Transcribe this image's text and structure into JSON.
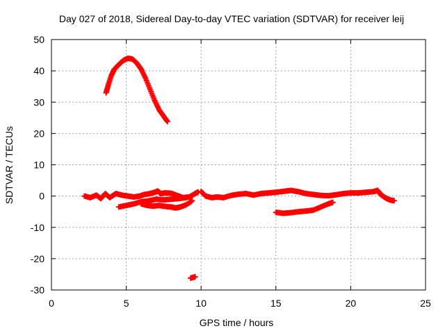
{
  "chart_data": {
    "type": "scatter",
    "title": "Day 027 of 2018, Sidereal Day-to-day VTEC variation (SDTVAR) for receiver leij",
    "xlabel": "GPS time / hours",
    "ylabel": "SDTVAR / TECUs",
    "xlim": [
      0,
      25
    ],
    "ylim": [
      -30,
      50
    ],
    "xticks": [
      0,
      5,
      10,
      15,
      20,
      25
    ],
    "yticks": [
      -30,
      -20,
      -10,
      0,
      10,
      20,
      30,
      40,
      50
    ],
    "grid": true,
    "marker_color": "#ff0000",
    "series": [
      {
        "values": [
          [
            3.65,
            33.0
          ],
          [
            3.8,
            35.5
          ],
          [
            4.0,
            38.5
          ],
          [
            4.2,
            40.5
          ],
          [
            4.5,
            42.0
          ],
          [
            4.8,
            43.3
          ],
          [
            5.1,
            44.0
          ],
          [
            5.4,
            43.8
          ],
          [
            5.7,
            42.5
          ],
          [
            6.0,
            40.5
          ],
          [
            6.3,
            37.5
          ],
          [
            6.6,
            34.0
          ],
          [
            6.9,
            30.5
          ],
          [
            7.2,
            27.5
          ],
          [
            7.5,
            25.5
          ],
          [
            7.75,
            23.8
          ]
        ]
      },
      {
        "values": [
          [
            2.2,
            0.0
          ],
          [
            2.6,
            -0.5
          ],
          [
            3.0,
            0.3
          ],
          [
            3.3,
            -0.8
          ],
          [
            3.6,
            0.8
          ],
          [
            3.9,
            -0.5
          ],
          [
            4.3,
            0.8
          ],
          [
            4.7,
            0.3
          ],
          [
            5.1,
            0.0
          ],
          [
            5.5,
            -0.3
          ],
          [
            5.9,
            0.0
          ],
          [
            6.2,
            0.5
          ],
          [
            6.6,
            0.8
          ],
          [
            6.9,
            1.2
          ],
          [
            7.1,
            1.6
          ],
          [
            7.3,
            0.8
          ],
          [
            7.6,
            1.0
          ],
          [
            8.0,
            0.9
          ],
          [
            8.4,
            0.2
          ],
          [
            8.8,
            -0.5
          ],
          [
            9.2,
            -0.3
          ],
          [
            9.6,
            0.8
          ],
          [
            9.8,
            1.3
          ]
        ]
      },
      {
        "values": [
          [
            4.5,
            -3.5
          ],
          [
            5.0,
            -3.0
          ],
          [
            5.5,
            -2.5
          ],
          [
            6.0,
            -1.8
          ],
          [
            6.5,
            -1.5
          ],
          [
            7.0,
            -1.0
          ],
          [
            7.5,
            -1.2
          ],
          [
            8.0,
            -1.0
          ],
          [
            8.5,
            -0.8
          ],
          [
            9.0,
            -0.5
          ]
        ]
      },
      {
        "values": [
          [
            6.0,
            -2.5
          ],
          [
            6.4,
            -3.0
          ],
          [
            6.8,
            -3.2
          ],
          [
            7.2,
            -3.0
          ],
          [
            7.6,
            -3.3
          ],
          [
            8.0,
            -3.5
          ],
          [
            8.3,
            -3.8
          ],
          [
            8.6,
            -3.5
          ],
          [
            9.0,
            -2.8
          ],
          [
            9.4,
            -1.5
          ]
        ]
      },
      {
        "values": [
          [
            9.3,
            -26.2
          ],
          [
            9.6,
            -25.8
          ]
        ]
      },
      {
        "values": [
          [
            10.0,
            1.5
          ],
          [
            10.3,
            0.0
          ],
          [
            10.7,
            -0.5
          ],
          [
            11.1,
            -0.3
          ],
          [
            11.5,
            -0.5
          ],
          [
            12.0,
            0.2
          ],
          [
            12.5,
            0.6
          ],
          [
            13.0,
            0.8
          ],
          [
            13.5,
            0.3
          ],
          [
            14.0,
            0.8
          ],
          [
            14.5,
            1.0
          ],
          [
            15.0,
            1.2
          ],
          [
            15.5,
            1.5
          ],
          [
            16.0,
            1.8
          ],
          [
            16.5,
            1.4
          ],
          [
            17.0,
            0.8
          ],
          [
            17.5,
            0.5
          ],
          [
            18.0,
            0.2
          ],
          [
            18.5,
            0.1
          ],
          [
            19.0,
            0.4
          ],
          [
            19.5,
            0.8
          ],
          [
            20.0,
            1.0
          ],
          [
            20.5,
            1.0
          ],
          [
            21.0,
            1.2
          ],
          [
            21.5,
            1.4
          ],
          [
            21.8,
            1.8
          ],
          [
            22.0,
            0.5
          ],
          [
            22.3,
            -0.5
          ],
          [
            22.6,
            -1.2
          ],
          [
            22.9,
            -1.5
          ]
        ]
      },
      {
        "values": [
          [
            15.0,
            -5.2
          ],
          [
            15.5,
            -5.5
          ],
          [
            16.0,
            -5.3
          ],
          [
            16.5,
            -5.0
          ],
          [
            17.0,
            -4.8
          ],
          [
            17.5,
            -4.5
          ],
          [
            18.0,
            -3.5
          ],
          [
            18.5,
            -2.5
          ],
          [
            18.8,
            -2.0
          ]
        ]
      }
    ]
  }
}
